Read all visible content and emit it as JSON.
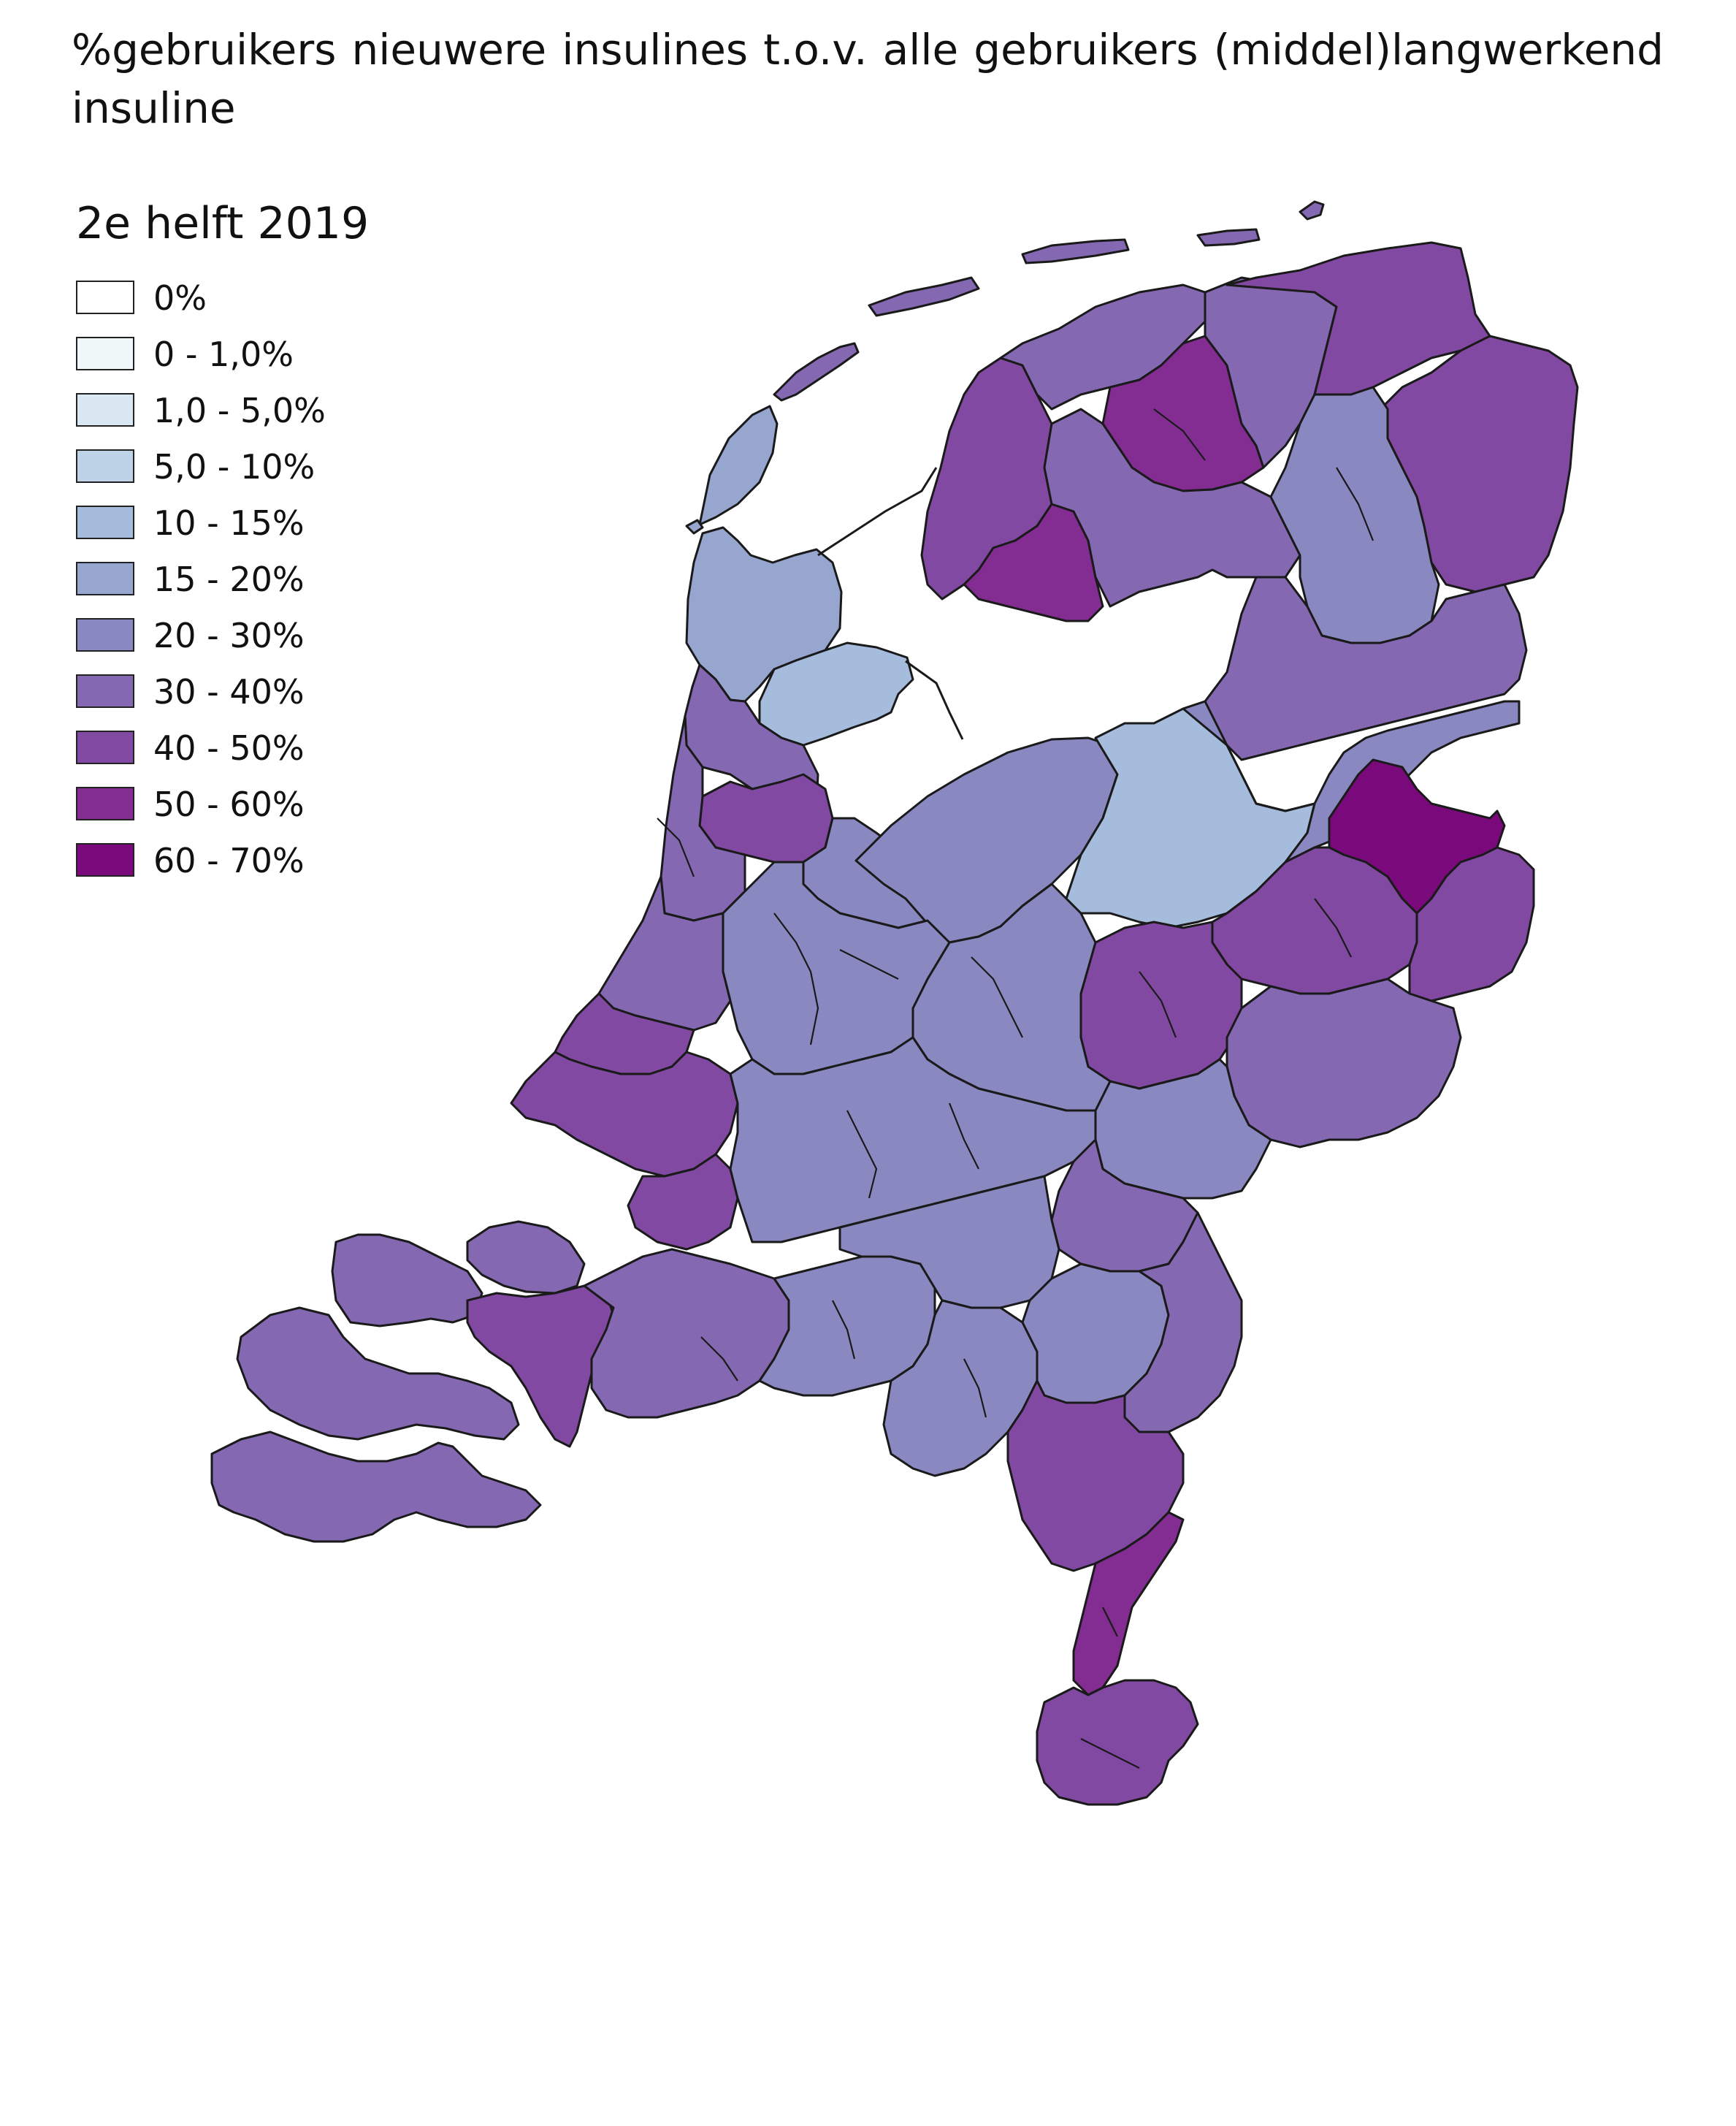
{
  "title": "%gebruikers nieuwere insulines t.o.v. alle gebruikers (middel)langwerkend insuline",
  "legend": {
    "title": "2e helft 2019",
    "classes": [
      {
        "label": "0%",
        "color": "#ffffff"
      },
      {
        "label": "0 - 1,0%",
        "color": "#eef8f8"
      },
      {
        "label": "1,0 - 5,0%",
        "color": "#d9e8f2"
      },
      {
        "label": "5,0 - 10%",
        "color": "#bfd3e8"
      },
      {
        "label": "10 - 15%",
        "color": "#a6bcdc"
      },
      {
        "label": "15 - 20%",
        "color": "#96a6cf"
      },
      {
        "label": "20 - 30%",
        "color": "#8a88c0"
      },
      {
        "label": "30 - 40%",
        "color": "#8468b2"
      },
      {
        "label": "40 - 50%",
        "color": "#8249a2"
      },
      {
        "label": "50 - 60%",
        "color": "#832d93"
      },
      {
        "label": "60 - 70%",
        "color": "#7a0a7c"
      }
    ]
  },
  "regions": [
    {
      "area": "Texel",
      "class": "15 - 20%"
    },
    {
      "area": "Noord-Holland Noord",
      "class": "15 - 20%"
    },
    {
      "area": "West-Friesland",
      "class": "10 - 15%"
    },
    {
      "area": "Zaanstreek / Waterland",
      "class": "30 - 40%"
    },
    {
      "area": "Amsterdam",
      "class": "40 - 50%"
    },
    {
      "area": "Kennemerland",
      "class": "30 - 40%"
    },
    {
      "area": "Gooi",
      "class": "20 - 30%"
    },
    {
      "area": "Flevoland",
      "class": "20 - 30%"
    },
    {
      "area": "Noordoostpolder",
      "class": "10 - 15%"
    },
    {
      "area": "Friesland west",
      "class": "40 - 50%"
    },
    {
      "area": "Friesland noord",
      "class": "30 - 40%"
    },
    {
      "area": "Friesland midden",
      "class": "50 - 60%"
    },
    {
      "area": "Sneek",
      "class": "50 - 60%"
    },
    {
      "area": "Friesland oost",
      "class": "30 - 40%"
    },
    {
      "area": "Friesland zuid",
      "class": "30 - 40%"
    },
    {
      "area": "Groningen",
      "class": "40 - 50%"
    },
    {
      "area": "Groningen oost",
      "class": "40 - 50%"
    },
    {
      "area": "Drenthe noord",
      "class": "20 - 30%"
    },
    {
      "area": "Drenthe zuid",
      "class": "30 - 40%"
    },
    {
      "area": "Zwolle",
      "class": "20 - 30%"
    },
    {
      "area": "Hardenberg",
      "class": "60 - 70%"
    },
    {
      "area": "Twente noord",
      "class": "40 - 50%"
    },
    {
      "area": "Twente zuid",
      "class": "40 - 50%"
    },
    {
      "area": "Deventer",
      "class": "40 - 50%"
    },
    {
      "area": "Achterhoek",
      "class": "30 - 40%"
    },
    {
      "area": "Arnhem",
      "class": "20 - 30%"
    },
    {
      "area": "Veluwe",
      "class": "20 - 30%"
    },
    {
      "area": "Utrecht",
      "class": "20 - 30%"
    },
    {
      "area": "Leiden",
      "class": "30 - 40%"
    },
    {
      "area": "Den Haag",
      "class": "40 - 50%"
    },
    {
      "area": "Rotterdam",
      "class": "40 - 50%"
    },
    {
      "area": "Drechtsteden",
      "class": "40 - 50%"
    },
    {
      "area": "Rivierenland",
      "class": "20 - 30%"
    },
    {
      "area": "Nijmegen",
      "class": "30 - 40%"
    },
    {
      "area": "Zeeland noord",
      "class": "30 - 40%"
    },
    {
      "area": "Zeeland midden",
      "class": "30 - 40%"
    },
    {
      "area": "Zeeuws-Vlaanderen",
      "class": "30 - 40%"
    },
    {
      "area": "Bergen op Zoom",
      "class": "40 - 50%"
    },
    {
      "area": "Breda",
      "class": "30 - 40%"
    },
    {
      "area": "Tilburg",
      "class": "20 - 30%"
    },
    {
      "area": "Den Bosch",
      "class": "20 - 30%"
    },
    {
      "area": "Eindhoven",
      "class": "20 - 30%"
    },
    {
      "area": "Helmond",
      "class": "20 - 30%"
    },
    {
      "area": "Venlo",
      "class": "30 - 40%"
    },
    {
      "area": "Roermond",
      "class": "40 - 50%"
    },
    {
      "area": "Limburg midden",
      "class": "50 - 60%"
    },
    {
      "area": "Zuid-Limburg",
      "class": "40 - 50%"
    }
  ]
}
